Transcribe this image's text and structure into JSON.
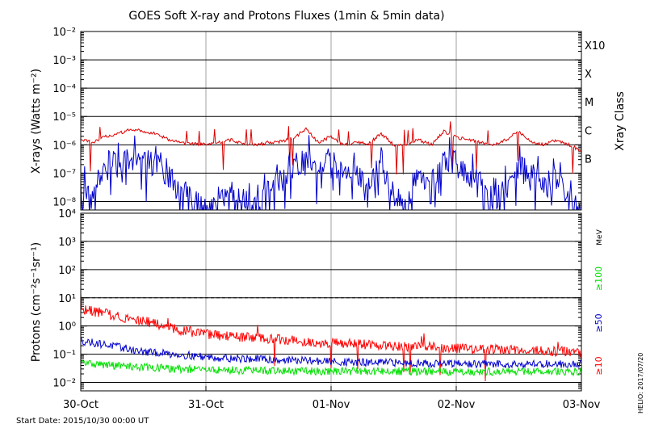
{
  "title": "GOES Soft X-ray and Protons Fluxes   (1min & 5min data)",
  "footer": {
    "start_date": "Start Date: 2015/10/30 00:00 UT",
    "stamp": "HELIO: 2017/07/20"
  },
  "x_axis": {
    "ticks": [
      "30-Oct",
      "31-Oct",
      "01-Nov",
      "02-Nov",
      "03-Nov"
    ]
  },
  "xray_panel": {
    "ylabel": "X-rays (Watts m⁻²)",
    "right_title": "Xray Class",
    "class_labels": [
      {
        "label": "X10",
        "flux_exp": -3
      },
      {
        "label": "X",
        "flux_exp": -4
      },
      {
        "label": "M",
        "flux_exp": -5
      },
      {
        "label": "C",
        "flux_exp": -6
      },
      {
        "label": "B",
        "flux_exp": -7
      }
    ],
    "ytick_exps": [
      -2,
      -3,
      -4,
      -5,
      -6,
      -7,
      -8
    ],
    "ylim_exp": [
      -8.3,
      -2
    ]
  },
  "proton_panel": {
    "ylabel": "Protons (cm⁻²s⁻¹sr⁻¹)",
    "ytick_labels": [
      "10⁴",
      "10³",
      "10²",
      "10¹",
      "10⁰",
      "10⁻¹",
      "10⁻²"
    ],
    "ytick_exps": [
      4,
      3,
      2,
      1,
      0,
      -1,
      -2
    ],
    "ylim_exp": [
      -2.3,
      4
    ],
    "threshold": 10,
    "energy_unit": "MeV",
    "energy_labels": [
      {
        "label": "≥100",
        "color": "#00e000"
      },
      {
        "label": "≥50",
        "color": "#0000cc"
      },
      {
        "label": "≥10",
        "color": "#ff0000"
      }
    ]
  },
  "colors": {
    "xray_long": "#dd0000",
    "xray_short": "#0000cc",
    "p10": "#ff0000",
    "p50": "#0000cc",
    "p100": "#00e000",
    "day_grid": "#a0a0a0"
  },
  "chart_data": [
    {
      "type": "line",
      "title": "GOES Soft X-ray and Protons Fluxes   (1min & 5min data)",
      "ylabel": "X-rays (Watts m⁻²)",
      "yscale": "log",
      "ylim": [
        5e-09,
        0.01
      ],
      "x_range_days": [
        0,
        4
      ],
      "x_ticks": [
        "30-Oct",
        "31-Oct",
        "01-Nov",
        "02-Nov",
        "03-Nov"
      ],
      "series": [
        {
          "name": "long",
          "color": "#dd0000",
          "x": [
            0,
            0.1,
            0.2,
            0.3,
            0.4,
            0.5,
            0.6,
            0.7,
            0.8,
            0.9,
            1.0,
            1.1,
            1.2,
            1.3,
            1.4,
            1.5,
            1.6,
            1.7,
            1.8,
            1.9,
            2.0,
            2.1,
            2.2,
            2.3,
            2.4,
            2.5,
            2.6,
            2.7,
            2.8,
            2.9,
            3.0,
            3.1,
            3.2,
            3.3,
            3.4,
            3.5,
            3.6,
            3.7,
            3.8,
            3.9,
            4.0
          ],
          "y": [
            1.5e-06,
            1.2e-06,
            2e-06,
            2.5e-06,
            3.5e-06,
            3e-06,
            2.5e-06,
            1.5e-06,
            1.2e-06,
            1.1e-06,
            1e-06,
            1.2e-06,
            1.5e-06,
            1.1e-06,
            1e-06,
            1.2e-06,
            1.3e-06,
            1.8e-06,
            3.5e-06,
            1.2e-06,
            2e-06,
            1e-06,
            1.2e-06,
            1.1e-06,
            2.5e-06,
            1e-06,
            1e-06,
            1.5e-06,
            1e-06,
            3e-06,
            1.8e-06,
            1.5e-06,
            1.2e-06,
            1e-06,
            1.5e-06,
            3e-06,
            1.2e-06,
            1e-06,
            1.5e-06,
            1e-06,
            6e-07
          ]
        },
        {
          "name": "short",
          "color": "#0000cc",
          "x": [
            0,
            0.1,
            0.2,
            0.3,
            0.4,
            0.5,
            0.6,
            0.7,
            0.8,
            0.9,
            1.0,
            1.1,
            1.2,
            1.3,
            1.4,
            1.5,
            1.6,
            1.7,
            1.8,
            1.9,
            2.0,
            2.1,
            2.2,
            2.3,
            2.4,
            2.5,
            2.6,
            2.7,
            2.8,
            2.9,
            3.0,
            3.1,
            3.2,
            3.3,
            3.4,
            3.5,
            3.6,
            3.7,
            3.8,
            3.9,
            4.0
          ],
          "y": [
            3e-08,
            2e-08,
            1.5e-07,
            2e-07,
            3e-07,
            2.5e-07,
            2e-07,
            8e-08,
            2e-08,
            1e-08,
            5e-09,
            1e-08,
            3e-08,
            1e-08,
            5e-09,
            3e-08,
            5e-08,
            1.5e-07,
            4e-07,
            2e-07,
            3e-07,
            1e-07,
            1e-07,
            5e-08,
            2e-07,
            2e-08,
            5e-09,
            1e-07,
            2e-08,
            4e-07,
            2e-07,
            1e-07,
            5e-08,
            1e-08,
            3e-08,
            2e-07,
            1e-07,
            3e-08,
            6e-08,
            1e-08,
            5e-09
          ]
        }
      ]
    },
    {
      "type": "line",
      "ylabel": "Protons (cm⁻²s⁻¹sr⁻¹)",
      "yscale": "log",
      "ylim": [
        0.005,
        10000.0
      ],
      "x_range_days": [
        0,
        4
      ],
      "x_ticks": [
        "30-Oct",
        "31-Oct",
        "01-Nov",
        "02-Nov",
        "03-Nov"
      ],
      "threshold": 10,
      "series": [
        {
          "name": "≥10",
          "color": "#ff0000",
          "x": [
            0,
            0.25,
            0.5,
            0.75,
            1.0,
            1.25,
            1.5,
            1.75,
            2.0,
            2.25,
            2.5,
            2.75,
            3.0,
            3.25,
            3.5,
            3.75,
            4.0
          ],
          "y": [
            4.0,
            2.5,
            1.5,
            0.8,
            0.5,
            0.4,
            0.35,
            0.3,
            0.25,
            0.22,
            0.2,
            0.18,
            0.16,
            0.15,
            0.14,
            0.13,
            0.12
          ]
        },
        {
          "name": "≥50",
          "color": "#0000cc",
          "x": [
            0,
            0.25,
            0.5,
            0.75,
            1.0,
            1.25,
            1.5,
            1.75,
            2.0,
            2.25,
            2.5,
            2.75,
            3.0,
            3.25,
            3.5,
            3.75,
            4.0
          ],
          "y": [
            0.3,
            0.2,
            0.12,
            0.1,
            0.08,
            0.07,
            0.065,
            0.06,
            0.055,
            0.05,
            0.05,
            0.048,
            0.045,
            0.045,
            0.045,
            0.045,
            0.045
          ]
        },
        {
          "name": "≥100",
          "color": "#00e000",
          "x": [
            0,
            0.25,
            0.5,
            0.75,
            1.0,
            1.25,
            1.5,
            1.75,
            2.0,
            2.25,
            2.5,
            2.75,
            3.0,
            3.25,
            3.5,
            3.75,
            4.0
          ],
          "y": [
            0.05,
            0.04,
            0.035,
            0.03,
            0.028,
            0.027,
            0.026,
            0.025,
            0.025,
            0.025,
            0.025,
            0.024,
            0.024,
            0.024,
            0.024,
            0.024,
            0.024
          ]
        }
      ]
    }
  ]
}
